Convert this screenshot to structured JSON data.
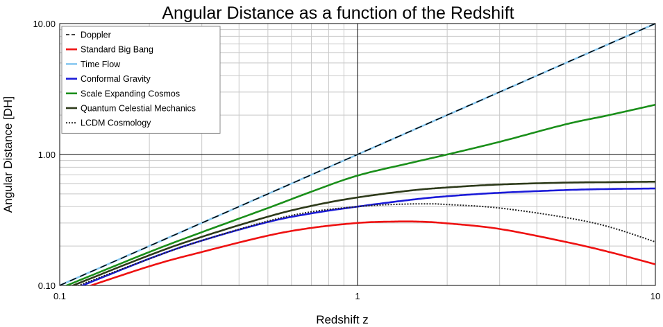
{
  "chart_data": {
    "type": "line",
    "title": "Angular Distance as a function of the Redshift",
    "xlabel": "Redshift  z",
    "ylabel": "Angular Distance [DH]",
    "x_scale": "log",
    "y_scale": "log",
    "xlim": [
      0.1,
      10
    ],
    "ylim": [
      0.1,
      10
    ],
    "x_ticks": [
      "0.1",
      "1",
      "10"
    ],
    "y_ticks": [
      "0.10",
      "1.00",
      "10.00"
    ],
    "grid": true,
    "legend_position": "top-left",
    "series": [
      {
        "name": "Doppler",
        "color": "#000000",
        "style": "dashed",
        "x": [
          0.1,
          0.2,
          0.5,
          1,
          2,
          5,
          10
        ],
        "y": [
          0.1,
          0.2,
          0.5,
          1,
          2,
          5,
          10
        ]
      },
      {
        "name": "Standard Big Bang",
        "color": "#ee1111",
        "style": "solid",
        "x": [
          0.1,
          0.2,
          0.3,
          0.5,
          0.7,
          1,
          1.3,
          1.6,
          2,
          3,
          5,
          7,
          10
        ],
        "y": [
          0.083,
          0.14,
          0.18,
          0.24,
          0.275,
          0.3,
          0.307,
          0.307,
          0.298,
          0.27,
          0.215,
          0.18,
          0.145
        ]
      },
      {
        "name": "Time Flow",
        "color": "#88c8f0",
        "style": "solid",
        "x": [
          0.1,
          0.2,
          0.5,
          1,
          2,
          5,
          10
        ],
        "y": [
          0.1,
          0.2,
          0.5,
          1,
          2,
          5,
          10
        ]
      },
      {
        "name": "Conformal Gravity",
        "color": "#1a1ad8",
        "style": "solid",
        "x": [
          0.1,
          0.2,
          0.3,
          0.5,
          0.7,
          1,
          1.5,
          2,
          3,
          5,
          7,
          10
        ],
        "y": [
          0.085,
          0.16,
          0.22,
          0.305,
          0.355,
          0.4,
          0.45,
          0.48,
          0.51,
          0.535,
          0.545,
          0.55
        ]
      },
      {
        "name": "Scale Expanding Cosmos",
        "color": "#1a8f1a",
        "style": "solid",
        "x": [
          0.1,
          0.2,
          0.3,
          0.5,
          0.7,
          1,
          1.5,
          2,
          3,
          5,
          7,
          10
        ],
        "y": [
          0.095,
          0.18,
          0.255,
          0.39,
          0.52,
          0.69,
          0.86,
          1.0,
          1.25,
          1.7,
          2.0,
          2.4
        ]
      },
      {
        "name": "Quantum Celestial Mechanics",
        "color": "#2d3a1a",
        "style": "solid",
        "x": [
          0.1,
          0.2,
          0.3,
          0.5,
          0.7,
          1,
          1.5,
          2,
          3,
          5,
          7,
          10
        ],
        "y": [
          0.091,
          0.17,
          0.235,
          0.335,
          0.405,
          0.47,
          0.53,
          0.56,
          0.59,
          0.61,
          0.615,
          0.62
        ]
      },
      {
        "name": "LCDM Cosmology",
        "color": "#222222",
        "style": "dotted",
        "x": [
          0.1,
          0.2,
          0.3,
          0.5,
          0.7,
          1,
          1.3,
          1.7,
          2,
          3,
          5,
          7,
          10
        ],
        "y": [
          0.088,
          0.16,
          0.22,
          0.31,
          0.365,
          0.4,
          0.415,
          0.42,
          0.415,
          0.39,
          0.33,
          0.28,
          0.215
        ]
      }
    ]
  }
}
